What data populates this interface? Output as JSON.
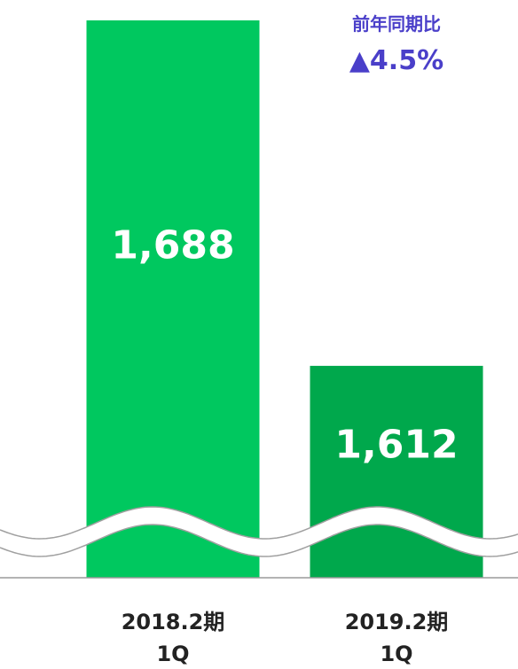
{
  "chart_data": {
    "type": "bar",
    "categories": [
      [
        "2018.2期",
        "1Q"
      ],
      [
        "2019.2期",
        "1Q"
      ]
    ],
    "values": [
      1688,
      1612
    ],
    "value_labels": [
      "1,688",
      "1,612"
    ],
    "bar_colors": [
      "#00c85f",
      "#00a84c"
    ],
    "axis_break": true,
    "annotation": {
      "title": "前年同期比",
      "value": "▲4.5%",
      "color": "#4a3fc9",
      "target_category": 1
    },
    "grid": false,
    "legend": "none"
  }
}
